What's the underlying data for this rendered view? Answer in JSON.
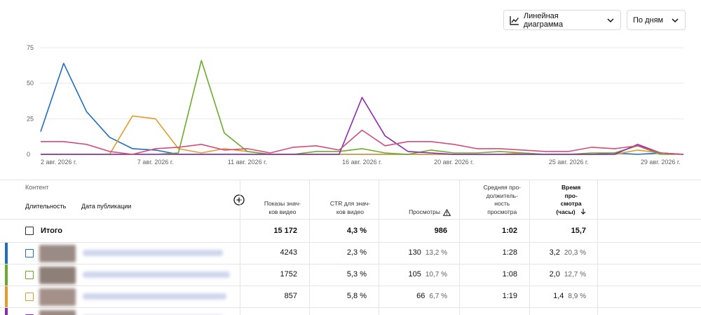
{
  "controls": {
    "chart_type": {
      "label": "Линейная диаграмма",
      "icon": "line-chart-icon"
    },
    "period": {
      "label": "По дням"
    }
  },
  "chart_data": {
    "type": "line",
    "x_labels": [
      "2 авг. 2026 г.",
      "7 авг. 2026 г.",
      "11 авг. 2026 г.",
      "16 авг. 2026 г.",
      "20 авг. 2026 г.",
      "25 авг. 2026 г.",
      "29 авг. 2026 г."
    ],
    "x": [
      2,
      3,
      4,
      5,
      6,
      7,
      8,
      9,
      10,
      11,
      12,
      13,
      14,
      15,
      16,
      17,
      18,
      19,
      20,
      21,
      22,
      23,
      24,
      25,
      26,
      27,
      28,
      29,
      30
    ],
    "y_ticks": [
      0,
      25,
      50,
      75
    ],
    "ylim": [
      0,
      75
    ],
    "series": [
      {
        "color": "#1f6ec2",
        "values": [
          16,
          64,
          30,
          12,
          4,
          3,
          0,
          0,
          0,
          0,
          0,
          0,
          0,
          0,
          0,
          0,
          0,
          0,
          0,
          0,
          0,
          0,
          0,
          0,
          0,
          1,
          0,
          1,
          0
        ]
      },
      {
        "color": "#e39b2a",
        "values": [
          0,
          0,
          0,
          0,
          27,
          25,
          4,
          1,
          4,
          2,
          0,
          0,
          0,
          0,
          0,
          0,
          0,
          0,
          0,
          0,
          0,
          1,
          0,
          0,
          0,
          0,
          3,
          1,
          0
        ]
      },
      {
        "color": "#6bab2c",
        "values": [
          0,
          0,
          0,
          0,
          0,
          0,
          1,
          66,
          15,
          2,
          0,
          0,
          2,
          2,
          4,
          1,
          0,
          3,
          1,
          1,
          2,
          1,
          0,
          0,
          1,
          1,
          6,
          0,
          0
        ]
      },
      {
        "color": "#8a2bb0",
        "values": [
          0,
          0,
          0,
          0,
          0,
          0,
          0,
          0,
          0,
          0,
          0,
          0,
          0,
          0,
          40,
          13,
          2,
          1,
          0,
          0,
          0,
          0,
          0,
          0,
          0,
          0,
          7,
          1,
          0
        ]
      },
      {
        "color": "#d44d7a",
        "values": [
          9,
          9,
          7,
          2,
          0,
          4,
          5,
          7,
          3,
          4,
          1,
          5,
          6,
          3,
          17,
          6,
          9,
          9,
          7,
          4,
          4,
          3,
          2,
          2,
          5,
          4,
          6,
          1,
          0
        ]
      }
    ]
  },
  "table": {
    "content_header": "Контент",
    "duration_header": "Длительность",
    "date_header": "Дата публикации",
    "columns": {
      "impressions": [
        "Показы знач-",
        "ков видео"
      ],
      "ctr": [
        "CTR для знач-",
        "ков видео"
      ],
      "views": [
        "Просмотры"
      ],
      "avg_duration": [
        "Средняя про-",
        "должитель-",
        "ность",
        "просмотра"
      ],
      "watch_time": [
        "Время",
        "про-",
        "смотра",
        "(часы)"
      ]
    },
    "total": {
      "label": "Итого",
      "impressions": "15 172",
      "ctr": "4,3 %",
      "views": "986",
      "avg_duration": "1:02",
      "watch_time": "15,7"
    },
    "rows": [
      {
        "color": "#1f6ec2",
        "impressions": "4243",
        "ctr": "2,3 %",
        "views": "130",
        "views_pct": "13,2 %",
        "avg_duration": "1:28",
        "watch_time": "3,2",
        "watch_pct": "20,3 %"
      },
      {
        "color": "#6bab2c",
        "impressions": "1752",
        "ctr": "5,3 %",
        "views": "105",
        "views_pct": "10,7 %",
        "avg_duration": "1:08",
        "watch_time": "2,0",
        "watch_pct": "12,7 %"
      },
      {
        "color": "#e39b2a",
        "impressions": "857",
        "ctr": "5,8 %",
        "views": "66",
        "views_pct": "6,7 %",
        "avg_duration": "1:19",
        "watch_time": "1,4",
        "watch_pct": "8,9 %"
      },
      {
        "color": "#8a2bb0",
        "impressions": "",
        "ctr": "",
        "views": "",
        "views_pct": "",
        "avg_duration": "",
        "watch_time": "",
        "watch_pct": ""
      }
    ]
  }
}
